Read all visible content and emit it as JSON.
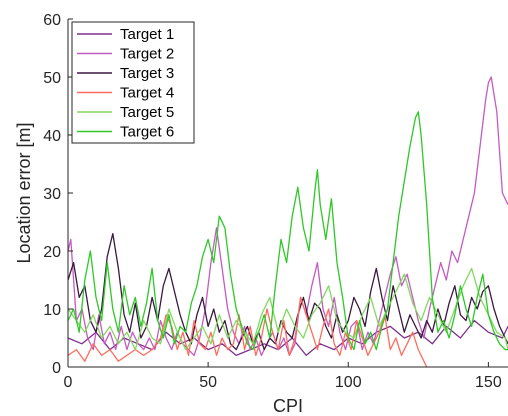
{
  "chart_data": {
    "type": "line",
    "xlabel": "CPI",
    "ylabel": "Location error [m]",
    "xlim": [
      0,
      157
    ],
    "ylim": [
      0,
      60
    ],
    "xticks": [
      0,
      50,
      100,
      150
    ],
    "yticks": [
      0,
      10,
      20,
      30,
      40,
      50,
      60
    ],
    "grid": false,
    "legend_position": "top-left",
    "series": [
      {
        "name": "Target 1",
        "color": "#7E2F8E",
        "x": [
          0,
          5,
          10,
          15,
          20,
          25,
          30,
          35,
          40,
          45,
          50,
          55,
          60,
          65,
          70,
          75,
          80,
          85,
          90,
          95,
          100,
          105,
          110,
          115,
          120,
          125,
          130,
          135,
          140,
          145,
          150,
          155,
          157
        ],
        "y": [
          5,
          4,
          6,
          3,
          5,
          4,
          3,
          6,
          4,
          5,
          3,
          4,
          2,
          3,
          4,
          3,
          5,
          2,
          4,
          3,
          5,
          4,
          6,
          7,
          5,
          6,
          4,
          7,
          5,
          8,
          6,
          5,
          7
        ]
      },
      {
        "name": "Target 2",
        "color": "#C45BC0",
        "x": [
          0,
          1,
          3,
          5,
          7,
          9,
          11,
          13,
          15,
          17,
          19,
          21,
          23,
          25,
          27,
          29,
          31,
          33,
          35,
          37,
          39,
          41,
          43,
          45,
          47,
          49,
          51,
          53,
          55,
          57,
          59,
          61,
          63,
          65,
          67,
          69,
          71,
          73,
          75,
          77,
          79,
          81,
          83,
          85,
          87,
          89,
          91,
          93,
          95,
          97,
          99,
          101,
          103,
          105,
          107,
          109,
          111,
          113,
          115,
          117,
          119,
          121,
          123,
          125,
          127,
          129,
          131,
          133,
          135,
          137,
          139,
          141,
          143,
          145,
          147,
          149,
          150,
          151,
          153,
          155,
          157
        ],
        "y": [
          20,
          22,
          8,
          10,
          5,
          3,
          9,
          4,
          6,
          3,
          7,
          3,
          6,
          4,
          3,
          5,
          3,
          8,
          5,
          3,
          6,
          4,
          3,
          2,
          5,
          10,
          18,
          24,
          17,
          10,
          6,
          4,
          7,
          3,
          5,
          2,
          4,
          6,
          3,
          5,
          2,
          4,
          12,
          9,
          14,
          18,
          10,
          7,
          12,
          6,
          3,
          7,
          8,
          3,
          6,
          4,
          8,
          12,
          16,
          19,
          14,
          16,
          12,
          8,
          5,
          10,
          14,
          18,
          15,
          20,
          18,
          22,
          26,
          30,
          38,
          46,
          49,
          50,
          44,
          30,
          28
        ]
      },
      {
        "name": "Target 3",
        "color": "#3A1840",
        "x": [
          0,
          2,
          4,
          6,
          8,
          10,
          12,
          14,
          16,
          18,
          20,
          22,
          24,
          26,
          28,
          30,
          32,
          34,
          36,
          38,
          40,
          42,
          44,
          46,
          48,
          50,
          52,
          54,
          56,
          58,
          60,
          62,
          64,
          66,
          68,
          70,
          72,
          74,
          76,
          78,
          80,
          82,
          84,
          86,
          88,
          90,
          92,
          94,
          96,
          98,
          100,
          102,
          104,
          106,
          108,
          110,
          112,
          114,
          116,
          118,
          120,
          122,
          124,
          126,
          128,
          130,
          132,
          134,
          136,
          138,
          140,
          142,
          144,
          146,
          148,
          150,
          152,
          154,
          156,
          157
        ],
        "y": [
          15,
          18,
          12,
          14,
          8,
          6,
          10,
          19,
          23,
          17,
          9,
          6,
          11,
          5,
          7,
          12,
          8,
          14,
          17,
          13,
          9,
          6,
          4,
          9,
          12,
          7,
          10,
          6,
          8,
          4,
          3,
          5,
          7,
          4,
          6,
          3,
          5,
          4,
          8,
          6,
          5,
          9,
          12,
          8,
          11,
          10,
          7,
          5,
          9,
          6,
          8,
          12,
          10,
          7,
          13,
          17,
          12,
          8,
          14,
          10,
          6,
          9,
          7,
          5,
          8,
          6,
          10,
          7,
          11,
          14,
          9,
          8,
          12,
          10,
          13,
          14,
          10,
          7,
          5,
          4
        ]
      },
      {
        "name": "Target 4",
        "color": "#FF6C5C",
        "x": [
          0,
          3,
          6,
          9,
          12,
          15,
          18,
          21,
          24,
          27,
          30,
          33,
          35,
          37,
          39,
          41,
          43,
          45,
          47,
          49,
          51,
          53,
          55,
          57,
          59,
          61,
          63,
          65,
          67,
          69,
          71,
          73,
          75,
          77,
          79,
          81,
          83,
          85,
          87,
          89,
          91,
          93,
          95,
          97,
          99,
          101,
          103,
          105,
          107,
          109,
          111,
          113,
          115,
          117,
          119,
          121,
          123,
          125,
          127,
          128
        ],
        "y": [
          2,
          3,
          1,
          4,
          2,
          3,
          1,
          2,
          3,
          2,
          3,
          5,
          9,
          7,
          3,
          6,
          2,
          8,
          4,
          3,
          6,
          2,
          5,
          3,
          4,
          9,
          3,
          7,
          2,
          5,
          10,
          6,
          3,
          8,
          2,
          5,
          12,
          9,
          6,
          3,
          7,
          10,
          4,
          2,
          6,
          3,
          8,
          5,
          2,
          4,
          6,
          9,
          3,
          5,
          2,
          4,
          6,
          3,
          1,
          0
        ]
      },
      {
        "name": "Target 5",
        "color": "#82D960",
        "x": [
          0,
          3,
          6,
          9,
          12,
          15,
          18,
          21,
          24,
          27,
          30,
          33,
          36,
          39,
          42,
          45,
          48,
          51,
          54,
          57,
          60,
          63,
          66,
          69,
          72,
          75,
          78,
          81,
          84,
          87,
          90,
          93,
          96,
          99,
          102,
          105,
          108,
          111,
          114,
          117,
          120,
          123,
          126,
          129,
          132,
          135,
          138,
          141,
          144,
          147,
          150,
          153,
          156,
          157
        ],
        "y": [
          10,
          8,
          6,
          9,
          5,
          7,
          4,
          6,
          3,
          8,
          5,
          4,
          10,
          6,
          3,
          5,
          7,
          4,
          9,
          5,
          8,
          6,
          4,
          9,
          12,
          6,
          10,
          7,
          5,
          9,
          11,
          14,
          8,
          6,
          5,
          9,
          12,
          7,
          10,
          13,
          16,
          11,
          8,
          12,
          9,
          6,
          10,
          14,
          17,
          12,
          9,
          6,
          5,
          3
        ]
      },
      {
        "name": "Target 6",
        "color": "#2EC827",
        "x": [
          0,
          2,
          4,
          6,
          8,
          10,
          12,
          14,
          16,
          18,
          20,
          22,
          24,
          26,
          28,
          30,
          32,
          34,
          36,
          38,
          40,
          42,
          44,
          46,
          48,
          50,
          52,
          54,
          56,
          58,
          60,
          62,
          64,
          66,
          68,
          70,
          72,
          74,
          76,
          78,
          80,
          82,
          84,
          86,
          88,
          89,
          90,
          92,
          94,
          96,
          98,
          100,
          102,
          104,
          106,
          108,
          110,
          112,
          114,
          116,
          118,
          120,
          122,
          124,
          125,
          126,
          128,
          130,
          132,
          134,
          136,
          138,
          140,
          142,
          144,
          146,
          148,
          150,
          152,
          154,
          156,
          157
        ],
        "y": [
          8,
          10,
          6,
          15,
          20,
          12,
          8,
          18,
          10,
          6,
          14,
          9,
          12,
          7,
          11,
          17,
          8,
          5,
          9,
          4,
          7,
          6,
          11,
          14,
          19,
          22,
          18,
          26,
          24,
          16,
          10,
          7,
          4,
          3,
          6,
          9,
          5,
          14,
          22,
          18,
          26,
          31,
          24,
          20,
          30,
          34,
          28,
          22,
          29,
          18,
          12,
          5,
          3,
          8,
          4,
          6,
          3,
          7,
          10,
          18,
          26,
          32,
          38,
          43,
          44,
          40,
          28,
          12,
          6,
          8,
          5,
          9,
          14,
          10,
          7,
          12,
          16,
          9,
          6,
          4,
          3,
          3
        ]
      }
    ]
  }
}
